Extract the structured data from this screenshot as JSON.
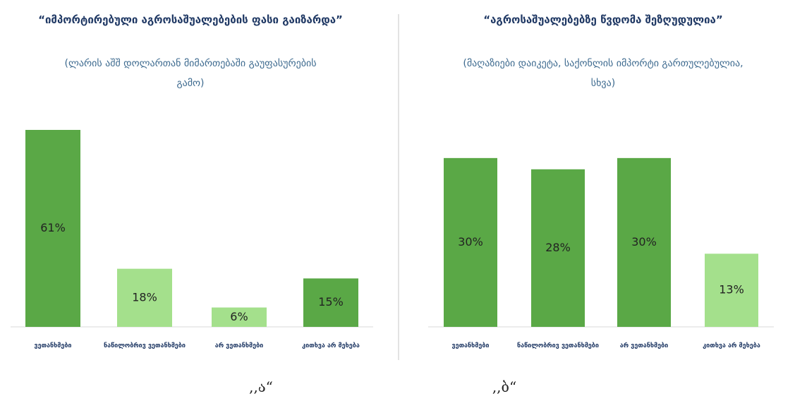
{
  "chart_data": [
    {
      "type": "bar",
      "title": "“იმპორტირებული აგროსაშუალებების ფასი გაიზარდა”",
      "subtitle": "(ლარის აშშ დოლართან მიმართებაში გაუფასურების გამო)",
      "caption": ",,ა“",
      "categories": [
        "ვეთანხმები",
        "ნაწილობრივ ვეთანხმები",
        "არ ვეთანხმები",
        "კითხვა არ მეხება"
      ],
      "values": [
        61,
        18,
        6,
        15
      ],
      "value_labels": [
        "61%",
        "18%",
        "6%",
        "15%"
      ],
      "colors": [
        "#5aa846",
        "#a4e08c",
        "#a4e08c",
        "#5aa846"
      ],
      "ylim": [
        0,
        61
      ]
    },
    {
      "type": "bar",
      "title": "“აგროსაშუალებებზე წვდომა შეზღუდულია”",
      "subtitle": "(მაღაზიები დაიკეტა, საქონლის იმპორტი გართულებულია, სხვა)",
      "caption": ",,ბ“",
      "categories": [
        "ვეთანხმები",
        "ნაწილობრივ ვეთანხმები",
        "არ ვეთანხმები",
        "კითხვა არ მეხება"
      ],
      "values": [
        30,
        28,
        30,
        13
      ],
      "value_labels": [
        "30%",
        "28%",
        "30%",
        "13%"
      ],
      "colors": [
        "#5aa846",
        "#5aa846",
        "#5aa846",
        "#a4e08c"
      ],
      "ylim": [
        0,
        35
      ]
    }
  ]
}
